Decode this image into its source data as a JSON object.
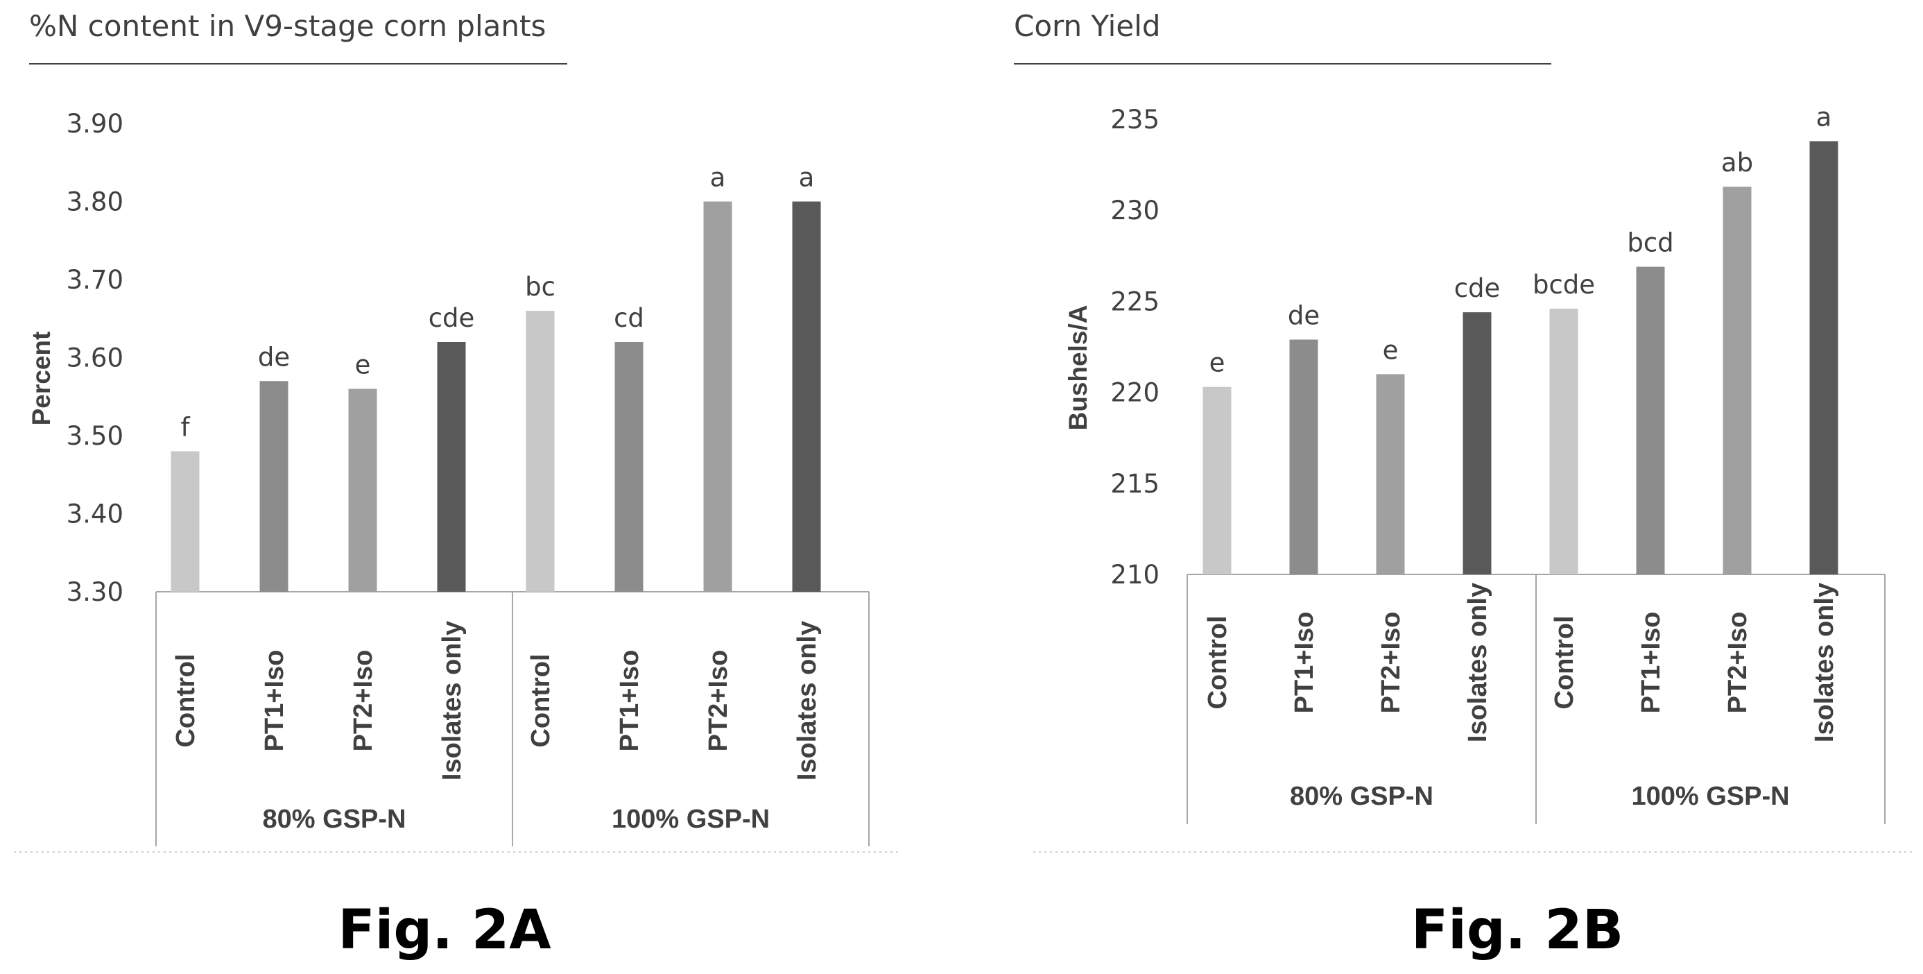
{
  "colors": {
    "control": "#c8c8c8",
    "pt1": "#8c8c8c",
    "pt2": "#a0a0a0",
    "isolates": "#595959",
    "axis": "#a6a6a6",
    "text": "#404040"
  },
  "chart_data": [
    {
      "type": "bar",
      "title": "%N content in V9-stage corn plants",
      "ylabel": "Percent",
      "figure_label": "Fig. 2A",
      "ylim": [
        3.3,
        3.9
      ],
      "yticks": [
        "3.30",
        "3.40",
        "3.50",
        "3.60",
        "3.70",
        "3.80",
        "3.90"
      ],
      "groups": [
        "80% GSP-N",
        "100% GSP-N"
      ],
      "categories": [
        "Control",
        "PT1+Iso",
        "PT2+Iso",
        "Isolates only",
        "Control",
        "PT1+Iso",
        "PT2+Iso",
        "Isolates only"
      ],
      "values": [
        3.48,
        3.57,
        3.56,
        3.62,
        3.66,
        3.62,
        3.8,
        3.8
      ],
      "letters": [
        "f",
        "de",
        "e",
        "cde",
        "bc",
        "cd",
        "a",
        "a"
      ],
      "grid": false
    },
    {
      "type": "bar",
      "title": "Corn Yield",
      "ylabel": "Bushels/A",
      "figure_label": "Fig. 2B",
      "ylim": [
        210,
        235
      ],
      "yticks": [
        "210",
        "215",
        "220",
        "225",
        "230",
        "235"
      ],
      "groups": [
        "80% GSP-N",
        "100% GSP-N"
      ],
      "categories": [
        "Control",
        "PT1+Iso",
        "PT2+Iso",
        "Isolates only",
        "Control",
        "PT1+Iso",
        "PT2+Iso",
        "Isolates only"
      ],
      "values": [
        220.3,
        222.9,
        221.0,
        224.4,
        224.6,
        226.9,
        231.3,
        233.8
      ],
      "letters": [
        "e",
        "de",
        "e",
        "cde",
        "bcde",
        "bcd",
        "ab",
        "a"
      ],
      "grid": false
    }
  ]
}
